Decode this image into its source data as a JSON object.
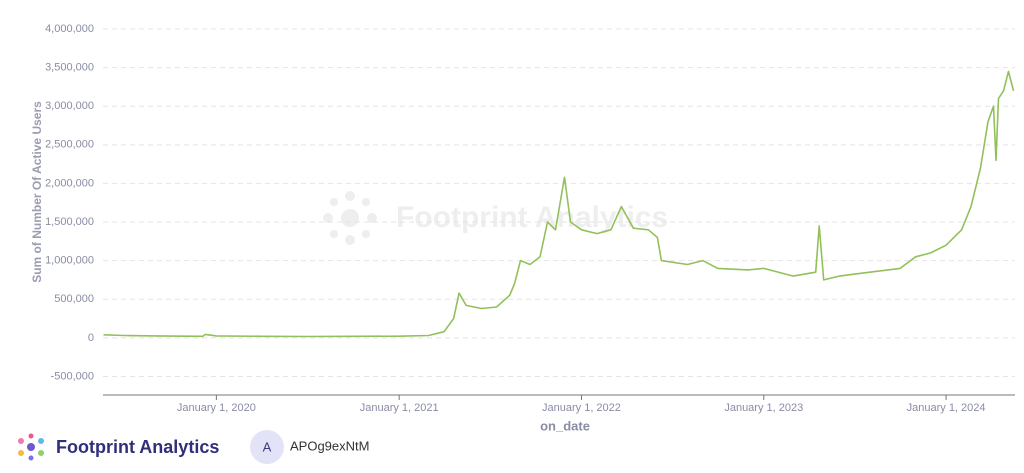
{
  "chart_data": {
    "type": "line",
    "watermark": "Footprint Analytics",
    "y_label": "Sum of Number Of Active Users",
    "x_label": "on_date",
    "x": [
      "2019-05-20",
      "2019-07-01",
      "2019-09-01",
      "2019-11-01",
      "2019-12-05",
      "2019-12-10",
      "2020-01-01",
      "2020-04-01",
      "2020-07-01",
      "2020-10-01",
      "2021-01-01",
      "2021-03-01",
      "2021-04-01",
      "2021-04-20",
      "2021-05-01",
      "2021-05-15",
      "2021-06-15",
      "2021-07-15",
      "2021-08-10",
      "2021-08-20",
      "2021-09-01",
      "2021-09-20",
      "2021-10-10",
      "2021-10-25",
      "2021-11-10",
      "2021-11-28",
      "2021-12-10",
      "2022-01-01",
      "2022-02-01",
      "2022-03-01",
      "2022-03-22",
      "2022-04-15",
      "2022-05-15",
      "2022-06-02",
      "2022-06-10",
      "2022-08-01",
      "2022-09-01",
      "2022-10-01",
      "2022-12-01",
      "2023-01-01",
      "2023-03-01",
      "2023-04-15",
      "2023-04-22",
      "2023-05-01",
      "2023-06-01",
      "2023-08-01",
      "2023-10-01",
      "2023-11-01",
      "2023-12-01",
      "2024-01-01",
      "2024-02-01",
      "2024-02-20",
      "2024-03-10",
      "2024-03-25",
      "2024-04-05",
      "2024-04-10",
      "2024-04-15",
      "2024-04-25",
      "2024-05-05",
      "2024-05-15"
    ],
    "series": [
      {
        "name": "Sum of Number Of Active Users",
        "color": "#93c05a",
        "values": [
          40000,
          30000,
          25000,
          22000,
          20000,
          45000,
          25000,
          20000,
          18000,
          20000,
          22000,
          30000,
          80000,
          250000,
          580000,
          420000,
          380000,
          400000,
          550000,
          700000,
          1000000,
          950000,
          1050000,
          1500000,
          1400000,
          2080000,
          1500000,
          1400000,
          1350000,
          1400000,
          1700000,
          1420000,
          1400000,
          1300000,
          1000000,
          950000,
          1000000,
          900000,
          880000,
          900000,
          800000,
          850000,
          1450000,
          750000,
          800000,
          850000,
          900000,
          1050000,
          1100000,
          1200000,
          1400000,
          1700000,
          2200000,
          2800000,
          3000000,
          2300000,
          3100000,
          3200000,
          3450000,
          3200000
        ]
      }
    ],
    "xlim": [
      "2019-05-19",
      "2024-05-18"
    ],
    "xticks": [
      {
        "value": "2020-01-01",
        "label": "January 1, 2020"
      },
      {
        "value": "2021-01-01",
        "label": "January 1, 2021"
      },
      {
        "value": "2022-01-01",
        "label": "January 1, 2022"
      },
      {
        "value": "2023-01-01",
        "label": "January 1, 2023"
      },
      {
        "value": "2024-01-01",
        "label": "January 1, 2024"
      }
    ],
    "ylim": [
      -740000,
      4000000
    ],
    "yticks": [
      {
        "value": -500000,
        "label": "-500,000"
      },
      0,
      {
        "value": 500000,
        "label": "500,000"
      },
      {
        "value": 1000000,
        "label": "1,000,000"
      },
      {
        "value": 1500000,
        "label": "1,500,000"
      },
      {
        "value": 2000000,
        "label": "2,000,000"
      },
      {
        "value": 2500000,
        "label": "2,500,000"
      },
      {
        "value": 3000000,
        "label": "3,000,000"
      },
      {
        "value": 3500000,
        "label": "3,500,000"
      },
      {
        "value": 4000000,
        "label": "4,000,000"
      }
    ],
    "grid": true
  },
  "footer": {
    "brand": "Footprint Analytics",
    "avatar": "A",
    "user": "APOg9exNtM"
  }
}
